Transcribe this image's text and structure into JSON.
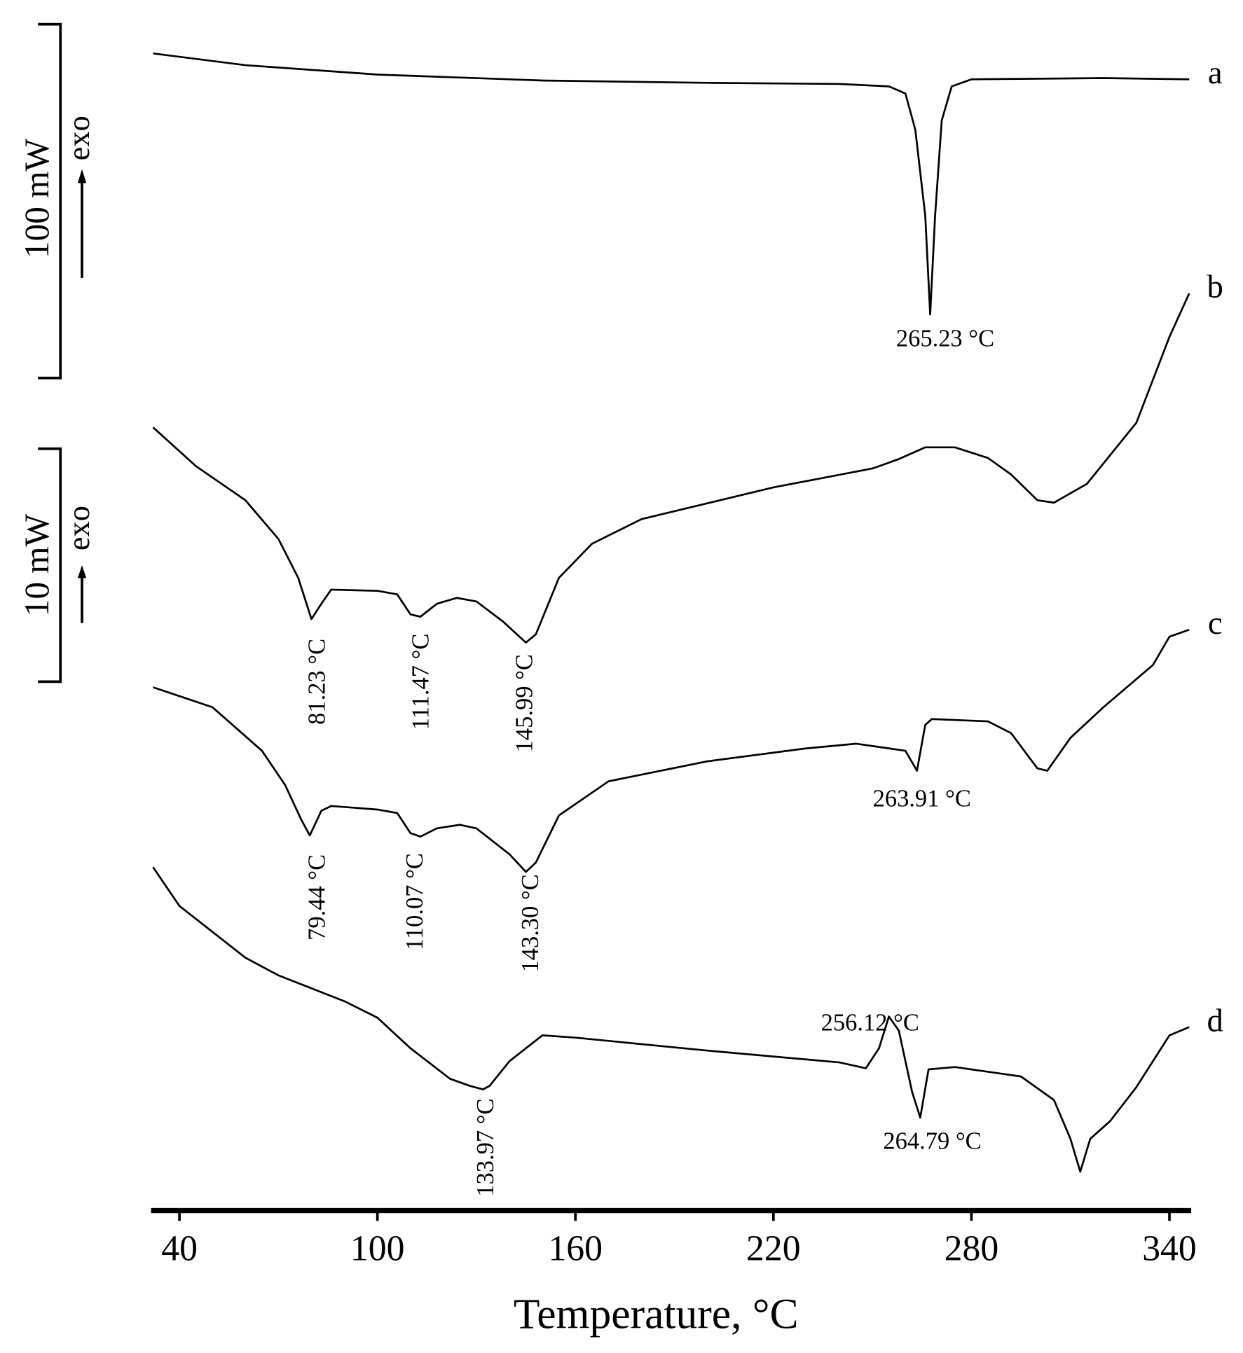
{
  "chart_data": {
    "type": "line",
    "x_label": "Temperature, °C",
    "xlim": [
      31.4,
      346.6
    ],
    "xticks": [
      40,
      100,
      160,
      220,
      280,
      340
    ],
    "ylim": [
      0,
      100
    ],
    "scale_bars": [
      {
        "label": "100 mW",
        "direction": "exo"
      },
      {
        "label": "10 mW",
        "direction": "exo"
      }
    ],
    "series": [
      {
        "name": "a",
        "color": "#000000",
        "x": [
          32,
          60,
          100,
          150,
          200,
          240,
          255,
          260,
          263,
          266,
          267.5,
          269,
          271,
          274,
          280,
          320,
          346
        ],
        "values": [
          98.4,
          97.4,
          96.6,
          96.1,
          95.9,
          95.8,
          95.6,
          95.0,
          91.9,
          84.6,
          76.2,
          84.6,
          92.7,
          95.6,
          96.2,
          96.3,
          96.2
        ]
      },
      {
        "name": "b",
        "color": "#000000",
        "x": [
          32,
          45,
          60,
          70,
          76,
          80,
          83,
          86,
          100,
          106,
          110,
          113,
          118,
          124,
          130,
          138,
          145,
          148,
          155,
          165,
          180,
          220,
          250,
          258,
          266,
          275,
          285,
          292,
          300,
          305,
          315,
          330,
          340,
          346
        ],
        "values": [
          66.6,
          63.3,
          60.4,
          57.1,
          53.8,
          50.3,
          51.6,
          52.8,
          52.7,
          52.4,
          50.7,
          50.5,
          51.6,
          52.1,
          51.8,
          50.1,
          48.3,
          49.0,
          53.8,
          56.7,
          58.8,
          61.5,
          63.1,
          63.9,
          64.9,
          64.9,
          64.0,
          62.6,
          60.4,
          60.2,
          61.8,
          67.0,
          74.3,
          78.0
        ]
      },
      {
        "name": "c",
        "color": "#000000",
        "x": [
          32,
          50,
          65,
          72,
          77,
          79.5,
          83,
          86,
          100,
          106,
          110,
          113,
          118,
          125,
          130,
          140,
          145,
          148,
          155,
          170,
          200,
          230,
          245,
          255,
          260,
          263.5,
          266,
          268,
          285,
          292,
          300,
          303,
          310,
          320,
          335,
          340,
          346
        ],
        "values": [
          44.5,
          42.8,
          39.1,
          36.2,
          33.2,
          31.9,
          34.0,
          34.4,
          34.1,
          33.8,
          32.1,
          31.8,
          32.5,
          32.8,
          32.5,
          30.3,
          28.8,
          29.6,
          33.6,
          36.5,
          38.2,
          39.3,
          39.7,
          39.3,
          39.1,
          37.4,
          41.3,
          41.8,
          41.6,
          40.6,
          37.6,
          37.4,
          40.2,
          42.8,
          46.4,
          48.8,
          49.4
        ]
      },
      {
        "name": "d",
        "color": "#000000",
        "x": [
          32,
          40,
          60,
          70,
          90,
          100,
          110,
          122,
          128,
          132,
          134,
          140,
          150,
          160,
          200,
          240,
          248,
          252,
          255,
          258,
          262,
          264.5,
          267,
          275,
          295,
          305,
          310,
          313,
          316,
          322,
          330,
          340,
          346
        ],
        "values": [
          29.2,
          25.9,
          21.5,
          20.0,
          17.8,
          16.4,
          13.8,
          11.2,
          10.6,
          10.3,
          10.6,
          12.7,
          14.9,
          14.7,
          13.6,
          12.6,
          12.1,
          13.8,
          16.5,
          15.3,
          10.1,
          7.9,
          12.0,
          12.2,
          11.4,
          9.4,
          6.1,
          3.3,
          6.1,
          7.6,
          10.5,
          14.9,
          15.6
        ]
      }
    ],
    "annotations": [
      {
        "text": "265.23 °C"
      },
      {
        "text": "81.23 °C"
      },
      {
        "text": "111.47 °C"
      },
      {
        "text": "145.99 °C"
      },
      {
        "text": "263.91 °C"
      },
      {
        "text": "79.44 °C"
      },
      {
        "text": "110.07 °C"
      },
      {
        "text": "143.30 °C"
      },
      {
        "text": "256.12 °C"
      },
      {
        "text": "264.79 °C"
      },
      {
        "text": "133.97 °C"
      }
    ]
  }
}
